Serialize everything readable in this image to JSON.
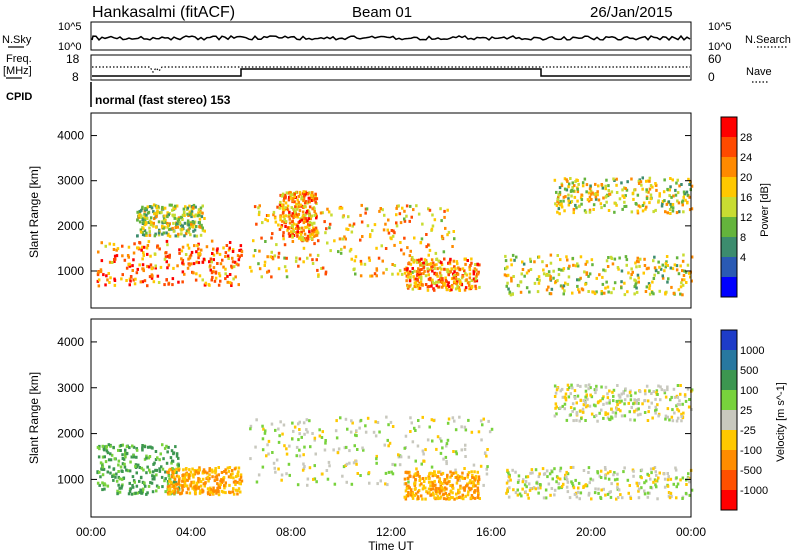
{
  "header": {
    "station": "Hankasalmi (fitACF)",
    "beam": "Beam 01",
    "date": "26/Jan/2015"
  },
  "top_panels": {
    "nsky_label": "N.Sky",
    "nsky_ticks": [
      "10^5",
      "10^0"
    ],
    "nsearch_label": "N.Search",
    "nsearch_ticks": [
      "10^5",
      "10^0"
    ],
    "freq_label_1": "Freq.",
    "freq_label_2": "[MHz]",
    "freq_ticks": [
      "18",
      "8"
    ],
    "nave_label": "Nave",
    "nave_ticks": [
      "60",
      "0"
    ],
    "cpid_label": "CPID",
    "cpid_text": "normal (fast stereo) 153"
  },
  "power_colorbar": {
    "label": "Power [dB]",
    "ticks": [
      "28",
      "24",
      "20",
      "16",
      "12",
      "8",
      "4"
    ],
    "colors": [
      "#ff0000",
      "#ff4a00",
      "#ff8a00",
      "#ffc800",
      "#c8dc32",
      "#64b43c",
      "#3c8c6e",
      "#2a5ab4",
      "#0000ff"
    ]
  },
  "velocity_colorbar": {
    "label": "Velocity [m s^-1]",
    "ticks": [
      "1000",
      "500",
      "100",
      "25",
      "-25",
      "-100",
      "-500",
      "-1000"
    ],
    "colors": [
      "#1e3cc8",
      "#2878a0",
      "#3c9650",
      "#78d23c",
      "#c8c8be",
      "#ffc800",
      "#ff8c00",
      "#ff5000",
      "#ff0000"
    ]
  },
  "axes": {
    "ylabel": "Slant Range [km]",
    "xlabel": "Time UT",
    "y_ticks": [
      "4000",
      "3000",
      "2000",
      "1000"
    ],
    "x_ticks": [
      "00:00",
      "04:00",
      "08:00",
      "12:00",
      "16:00",
      "20:00",
      "00:00"
    ]
  },
  "chart_data": [
    {
      "type": "heatmap",
      "title": "Power",
      "x_range_hours": [
        0,
        24
      ],
      "y_range_km": [
        180,
        4500
      ],
      "colorbar_range_db": [
        0,
        30
      ],
      "echo_regions": [
        {
          "t0": 0.2,
          "t1": 6.0,
          "r0": 700,
          "r1": 1700,
          "level": 24
        },
        {
          "t0": 1.8,
          "t1": 4.5,
          "r0": 1800,
          "r1": 2500,
          "level": 14
        },
        {
          "t0": 6.3,
          "t1": 14.5,
          "r0": 900,
          "r1": 2500,
          "level": 20
        },
        {
          "t0": 7.5,
          "t1": 9.0,
          "r0": 1700,
          "r1": 2800,
          "level": 22
        },
        {
          "t0": 12.5,
          "t1": 15.5,
          "r0": 600,
          "r1": 1300,
          "level": 22
        },
        {
          "t0": 16.5,
          "t1": 24.0,
          "r0": 500,
          "r1": 1400,
          "level": 16
        },
        {
          "t0": 18.5,
          "t1": 24.0,
          "r0": 2300,
          "r1": 3100,
          "level": 16
        }
      ]
    },
    {
      "type": "heatmap",
      "title": "Velocity",
      "x_range_hours": [
        0,
        24
      ],
      "y_range_km": [
        180,
        4500
      ],
      "colorbar_range_ms": [
        -1000,
        1000
      ],
      "echo_regions": [
        {
          "t0": 0.2,
          "t1": 3.5,
          "r0": 700,
          "r1": 1800,
          "velocity": 120
        },
        {
          "t0": 3.0,
          "t1": 6.0,
          "r0": 700,
          "r1": 1300,
          "velocity": -100
        },
        {
          "t0": 6.3,
          "t1": 16.0,
          "r0": 900,
          "r1": 2400,
          "velocity": 0
        },
        {
          "t0": 12.5,
          "t1": 15.5,
          "r0": 600,
          "r1": 1200,
          "velocity": -100
        },
        {
          "t0": 16.5,
          "t1": 24.0,
          "r0": 600,
          "r1": 1300,
          "velocity": 0
        },
        {
          "t0": 18.5,
          "t1": 24.0,
          "r0": 2300,
          "r1": 3100,
          "velocity": 0
        }
      ]
    }
  ]
}
